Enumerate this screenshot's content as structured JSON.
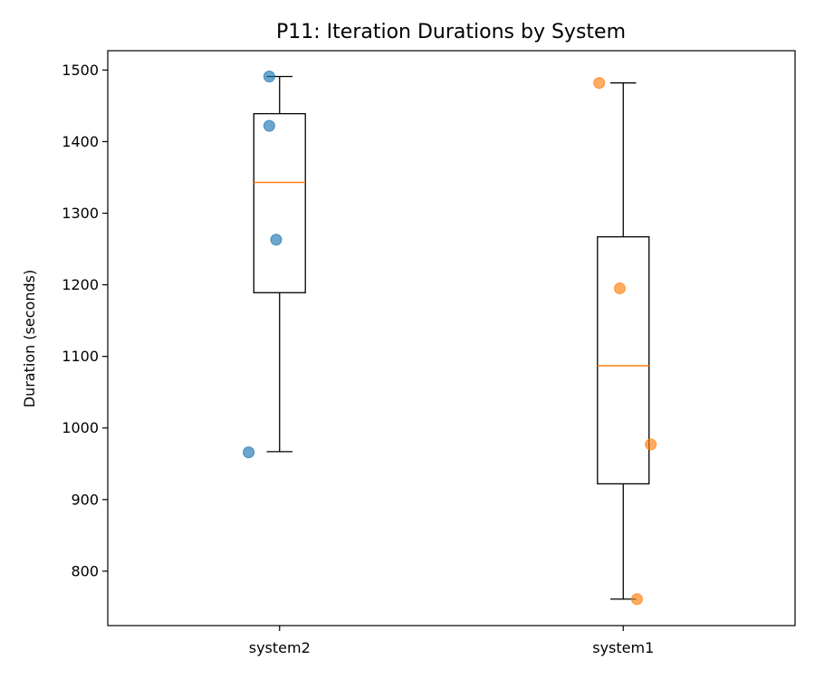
{
  "chart_data": {
    "type": "box",
    "title": "P11: Iteration Durations by System",
    "xlabel": "",
    "ylabel": "Duration (seconds)",
    "ylim": [
      724,
      1527
    ],
    "yticks": [
      800,
      900,
      1000,
      1100,
      1200,
      1300,
      1400,
      1500
    ],
    "categories": [
      "system2",
      "system1"
    ],
    "boxes": [
      {
        "category": "system2",
        "whisker_low": 967,
        "q1": 1189,
        "median": 1343,
        "q3": 1439,
        "whisker_high": 1491,
        "points": [
          {
            "offset": -0.03,
            "value": 1491
          },
          {
            "offset": -0.03,
            "value": 1422
          },
          {
            "offset": -0.01,
            "value": 1263
          },
          {
            "offset": -0.09,
            "value": 966
          }
        ],
        "point_color": "#1f77b4"
      },
      {
        "category": "system1",
        "whisker_low": 761,
        "q1": 922,
        "median": 1087,
        "q3": 1267,
        "whisker_high": 1482,
        "points": [
          {
            "offset": -0.07,
            "value": 1482
          },
          {
            "offset": -0.01,
            "value": 1195
          },
          {
            "offset": 0.08,
            "value": 977
          },
          {
            "offset": 0.04,
            "value": 761
          }
        ],
        "point_color": "#ff7f0e"
      }
    ],
    "box_color": "#000000",
    "median_color": "#ff7f0e",
    "grid": false,
    "legend": "none"
  }
}
